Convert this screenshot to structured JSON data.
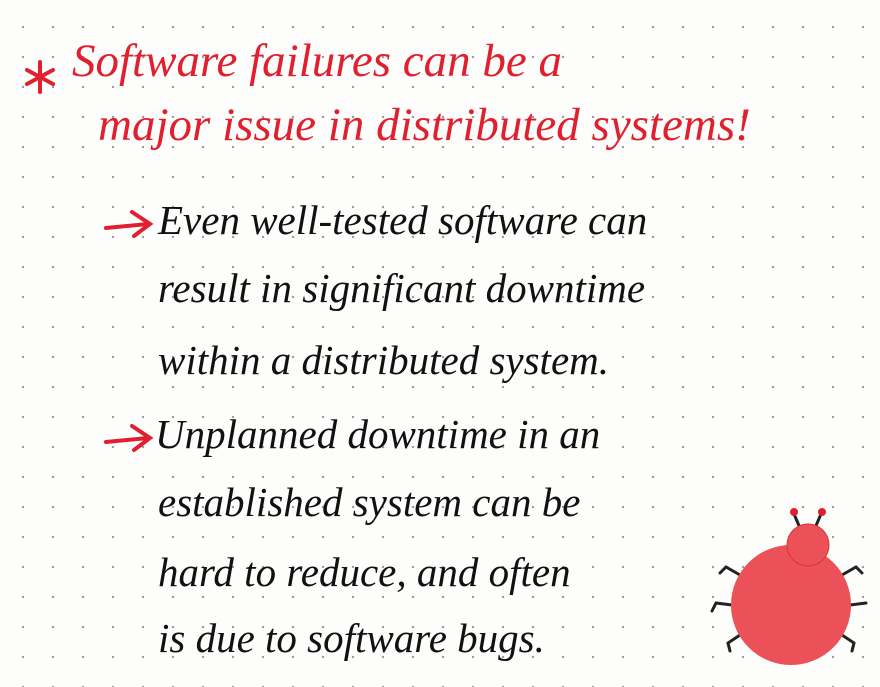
{
  "heading": {
    "lines": [
      "Software failures can be a",
      "major issue in distributed systems!"
    ]
  },
  "points": [
    {
      "lines": [
        "Even well-tested software can",
        "result in significant downtime",
        "within a distributed system."
      ]
    },
    {
      "lines": [
        "Unplanned downtime in an",
        "established system can be",
        "hard to reduce, and often",
        "is due to software bugs."
      ]
    }
  ]
}
